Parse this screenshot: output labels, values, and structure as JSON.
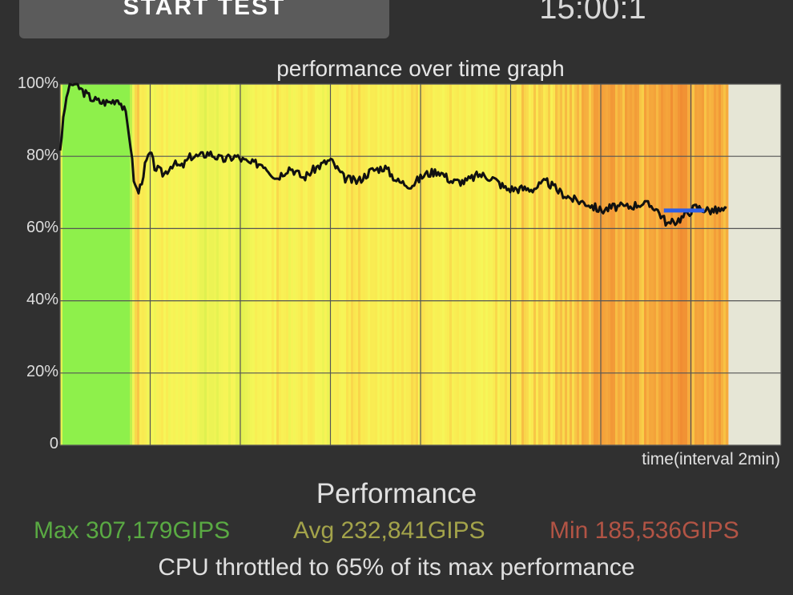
{
  "header": {
    "start_button_label": "START TEST",
    "timer_text": "15:00:1"
  },
  "colors": {
    "plot_background": "#e6e6d6",
    "grid": "#555555",
    "line": "#111111",
    "avg_marker": "#2f5fe6",
    "max_text": "#5aaa43",
    "avg_text": "#a3a34a",
    "min_text": "#b25445"
  },
  "chart_data": {
    "type": "area",
    "title": "performance over time graph",
    "xlabel": "time(interval 2min)",
    "ylabel": "",
    "y_ticks": [
      "100%",
      "80%",
      "60%",
      "40%",
      "20%",
      "0"
    ],
    "ylim": [
      0,
      100
    ],
    "xlim": [
      0,
      16
    ],
    "x_unit": "minutes",
    "grid": true,
    "fill": "per-sample color from green (high) through yellow to orange (low)",
    "series": [
      {
        "x": [
          0,
          0.1,
          0.2,
          0.35,
          0.5,
          0.7,
          0.9,
          1.1,
          1.3,
          1.45,
          1.55,
          1.65,
          1.75,
          1.9,
          2.0,
          2.1,
          2.3,
          2.5,
          2.7,
          2.9,
          3.1,
          3.3,
          3.6,
          3.9,
          4.2,
          4.5,
          4.8,
          5.1,
          5.4,
          5.7,
          6.0,
          6.3,
          6.6,
          6.9,
          7.2,
          7.5,
          7.8,
          8.1,
          8.4,
          8.7,
          9.0,
          9.3,
          9.6,
          9.9,
          10.2,
          10.5,
          10.8,
          11.1,
          11.4,
          11.7,
          12.0,
          12.3,
          12.6,
          12.9,
          13.2,
          13.5,
          13.8,
          14.1,
          14.4,
          14.6,
          14.8
        ],
        "y": [
          82,
          93,
          100,
          100,
          98,
          96,
          95,
          95,
          96,
          92,
          85,
          72,
          70,
          78,
          81,
          77,
          75,
          78,
          77,
          80,
          80,
          81,
          79,
          80,
          78,
          78,
          74,
          77,
          74,
          77,
          79,
          74,
          73,
          76,
          77,
          73,
          72,
          75,
          76,
          73,
          73,
          75,
          74,
          71,
          71,
          71,
          73,
          70,
          68,
          67,
          65,
          66,
          66,
          67,
          66,
          61,
          63,
          66,
          65,
          65,
          65
        ]
      }
    ],
    "annotation": "blue horizontal marker at about 65% between 13.4 and 14.3 min"
  },
  "stats": {
    "title": "Performance",
    "max": "Max 307,179GIPS",
    "avg": "Avg 232,841GIPS",
    "min": "Min 185,536GIPS",
    "throttle": "CPU throttled to 65% of its max performance"
  }
}
